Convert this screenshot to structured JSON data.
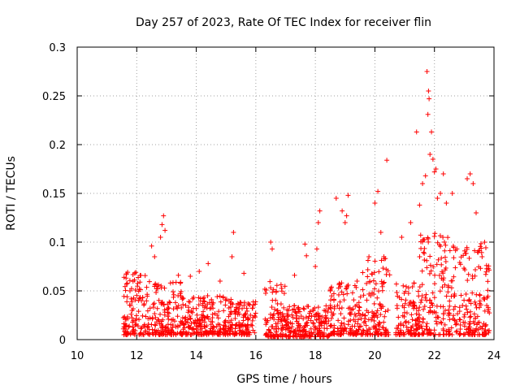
{
  "chart_data": {
    "type": "scatter",
    "title": "Day 257 of 2023, Rate Of TEC Index for receiver flin",
    "xlabel": "GPS time / hours",
    "ylabel": "ROTI / TECUs",
    "xlim": [
      10,
      24
    ],
    "ylim": [
      0,
      0.3
    ],
    "xticks": [
      10,
      12,
      14,
      16,
      18,
      20,
      22,
      24
    ],
    "yticks": [
      0,
      0.05,
      0.1,
      0.15,
      0.2,
      0.25,
      0.3
    ],
    "ytick_labels": [
      "0",
      "0.05",
      "0.1",
      "0.15",
      "0.2",
      "0.25",
      "0.3"
    ],
    "grid": true,
    "marker": "+",
    "color": "#ff0000",
    "series": [
      {
        "name": "ROTI",
        "outliers": [
          [
            12.5,
            0.096
          ],
          [
            12.6,
            0.085
          ],
          [
            12.8,
            0.105
          ],
          [
            12.85,
            0.118
          ],
          [
            12.9,
            0.127
          ],
          [
            12.95,
            0.112
          ],
          [
            13.4,
            0.066
          ],
          [
            13.8,
            0.065
          ],
          [
            14.1,
            0.07
          ],
          [
            14.4,
            0.078
          ],
          [
            14.8,
            0.06
          ],
          [
            15.2,
            0.085
          ],
          [
            15.25,
            0.11
          ],
          [
            15.6,
            0.068
          ],
          [
            16.5,
            0.1
          ],
          [
            16.55,
            0.093
          ],
          [
            17.3,
            0.066
          ],
          [
            17.65,
            0.098
          ],
          [
            17.7,
            0.086
          ],
          [
            18.0,
            0.075
          ],
          [
            18.05,
            0.093
          ],
          [
            18.1,
            0.12
          ],
          [
            18.15,
            0.132
          ],
          [
            18.7,
            0.145
          ],
          [
            18.9,
            0.132
          ],
          [
            19.0,
            0.12
          ],
          [
            19.1,
            0.148
          ],
          [
            19.05,
            0.127
          ],
          [
            19.4,
            0.06
          ],
          [
            19.8,
            0.085
          ],
          [
            20.0,
            0.14
          ],
          [
            20.1,
            0.152
          ],
          [
            20.2,
            0.11
          ],
          [
            20.3,
            0.085
          ],
          [
            20.4,
            0.184
          ],
          [
            20.9,
            0.105
          ],
          [
            21.2,
            0.12
          ],
          [
            21.4,
            0.213
          ],
          [
            21.5,
            0.138
          ],
          [
            21.6,
            0.16
          ],
          [
            21.7,
            0.168
          ],
          [
            21.75,
            0.275
          ],
          [
            21.8,
            0.255
          ],
          [
            21.82,
            0.247
          ],
          [
            21.78,
            0.231
          ],
          [
            21.85,
            0.19
          ],
          [
            21.9,
            0.213
          ],
          [
            21.95,
            0.185
          ],
          [
            22.0,
            0.172
          ],
          [
            22.05,
            0.175
          ],
          [
            22.1,
            0.145
          ],
          [
            22.2,
            0.15
          ],
          [
            22.3,
            0.17
          ],
          [
            22.4,
            0.14
          ],
          [
            22.6,
            0.15
          ],
          [
            23.1,
            0.165
          ],
          [
            23.2,
            0.17
          ],
          [
            23.3,
            0.16
          ],
          [
            23.4,
            0.13
          ],
          [
            23.6,
            0.085
          ]
        ]
      }
    ],
    "activity_profile": [
      {
        "start": 11.55,
        "end": 12.5,
        "low": 0.005,
        "high": 0.07
      },
      {
        "start": 12.5,
        "end": 13.5,
        "low": 0.005,
        "high": 0.06
      },
      {
        "start": 13.5,
        "end": 16.0,
        "low": 0.005,
        "high": 0.045
      },
      {
        "start": 16.3,
        "end": 17.0,
        "low": 0.003,
        "high": 0.06
      },
      {
        "start": 17.0,
        "end": 18.5,
        "low": 0.003,
        "high": 0.035
      },
      {
        "start": 18.5,
        "end": 19.5,
        "low": 0.005,
        "high": 0.06
      },
      {
        "start": 19.5,
        "end": 20.5,
        "low": 0.005,
        "high": 0.085
      },
      {
        "start": 20.7,
        "end": 21.5,
        "low": 0.005,
        "high": 0.06
      },
      {
        "start": 21.5,
        "end": 22.5,
        "low": 0.005,
        "high": 0.11
      },
      {
        "start": 22.5,
        "end": 23.85,
        "low": 0.005,
        "high": 0.1
      }
    ]
  }
}
